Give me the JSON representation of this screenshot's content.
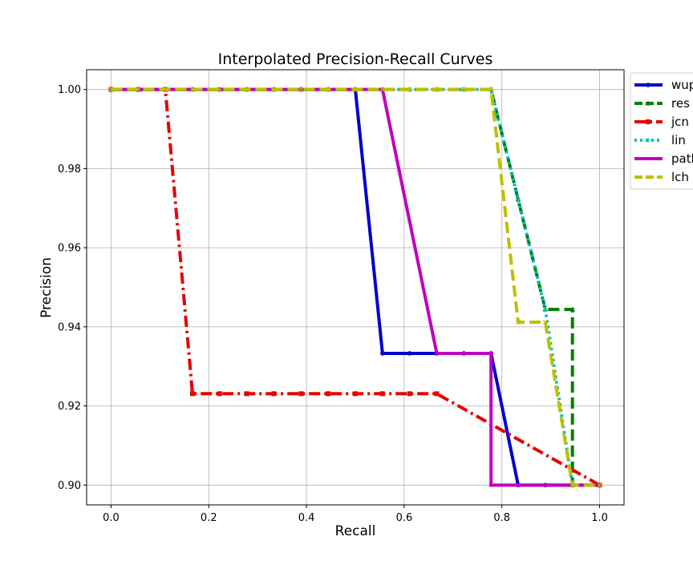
{
  "chart_data": {
    "type": "line",
    "title": "Interpolated Precision-Recall Curves",
    "xlabel": "Recall",
    "ylabel": "Precision",
    "xlim": [
      -0.05,
      1.05
    ],
    "ylim": [
      0.895,
      1.005
    ],
    "xticks": [
      0.0,
      0.2,
      0.4,
      0.6,
      0.8,
      1.0
    ],
    "xtick_labels": [
      "0.0",
      "0.2",
      "0.4",
      "0.6",
      "0.8",
      "1.0"
    ],
    "yticks": [
      0.9,
      0.92,
      0.94,
      0.96,
      0.98,
      1.0
    ],
    "ytick_labels": [
      "0.90",
      "0.92",
      "0.94",
      "0.96",
      "0.98",
      "1.00"
    ],
    "grid": true,
    "legend_position": "outside-right-top",
    "series": [
      {
        "name": "wup",
        "color": "#0000cc",
        "dash": "solid",
        "marker": "circle",
        "x": [
          0.0,
          0.0556,
          0.1111,
          0.1667,
          0.2222,
          0.2778,
          0.3333,
          0.3889,
          0.4444,
          0.5,
          0.5556,
          0.6111,
          0.6667,
          0.7222,
          0.7778,
          0.8333,
          0.8889,
          0.9444,
          1.0
        ],
        "y": [
          1.0,
          1.0,
          1.0,
          1.0,
          1.0,
          1.0,
          1.0,
          1.0,
          1.0,
          1.0,
          0.9333,
          0.9333,
          0.9333,
          0.9333,
          0.9333,
          0.9,
          0.9,
          0.9,
          0.9
        ]
      },
      {
        "name": "res",
        "color": "#007f00",
        "dash": "dashed",
        "marker": "triangle",
        "x": [
          0.0,
          0.0556,
          0.1111,
          0.1667,
          0.2222,
          0.2778,
          0.3333,
          0.3889,
          0.4444,
          0.5,
          0.5556,
          0.6111,
          0.6667,
          0.7222,
          0.7778,
          0.8333,
          0.8889,
          0.9444,
          0.9444,
          1.0
        ],
        "y": [
          1.0,
          1.0,
          1.0,
          1.0,
          1.0,
          1.0,
          1.0,
          1.0,
          1.0,
          1.0,
          1.0,
          1.0,
          1.0,
          1.0,
          1.0,
          0.9722,
          0.9444,
          0.9444,
          0.9,
          0.9
        ]
      },
      {
        "name": "jcn",
        "color": "#e60000",
        "dash": "dashdot",
        "marker": "square",
        "x": [
          0.0,
          0.0556,
          0.1111,
          0.1667,
          0.2222,
          0.2778,
          0.3333,
          0.3889,
          0.4444,
          0.5,
          0.5556,
          0.6111,
          0.6667,
          1.0
        ],
        "y": [
          1.0,
          1.0,
          1.0,
          0.9231,
          0.9231,
          0.9231,
          0.9231,
          0.9231,
          0.9231,
          0.9231,
          0.9231,
          0.9231,
          0.9231,
          0.9
        ]
      },
      {
        "name": "lin",
        "color": "#00bfbf",
        "dash": "dotted",
        "marker": "plus",
        "x": [
          0.0,
          0.0556,
          0.1111,
          0.1667,
          0.2222,
          0.2778,
          0.3333,
          0.3889,
          0.4444,
          0.5,
          0.5556,
          0.6111,
          0.6667,
          0.7222,
          0.7778,
          0.8333,
          0.8889,
          0.9444,
          1.0
        ],
        "y": [
          1.0,
          1.0,
          1.0,
          1.0,
          1.0,
          1.0,
          1.0,
          1.0,
          1.0,
          1.0,
          1.0,
          1.0,
          1.0,
          1.0,
          1.0,
          0.9722,
          0.9444,
          0.9,
          0.9
        ]
      },
      {
        "name": "path",
        "color": "#bf00bf",
        "dash": "solid",
        "marker": "dot",
        "x": [
          0.0,
          0.0556,
          0.1111,
          0.1667,
          0.2222,
          0.2778,
          0.3333,
          0.3889,
          0.4444,
          0.5,
          0.5556,
          0.6111,
          0.6667,
          0.7222,
          0.7778,
          0.7778,
          0.8333,
          0.8889,
          0.9444,
          1.0
        ],
        "y": [
          1.0,
          1.0,
          1.0,
          1.0,
          1.0,
          1.0,
          1.0,
          1.0,
          1.0,
          1.0,
          1.0,
          0.9667,
          0.9333,
          0.9333,
          0.9333,
          0.9,
          0.9,
          0.9,
          0.9,
          0.9
        ]
      },
      {
        "name": "lch",
        "color": "#bfbf00",
        "dash": "dashed",
        "marker": "x",
        "x": [
          0.0,
          0.0556,
          0.1111,
          0.1667,
          0.2222,
          0.2778,
          0.3333,
          0.3889,
          0.4444,
          0.5,
          0.5556,
          0.6111,
          0.6667,
          0.7222,
          0.7778,
          0.8333,
          0.8889,
          0.9444,
          1.0
        ],
        "y": [
          1.0,
          1.0,
          1.0,
          1.0,
          1.0,
          1.0,
          1.0,
          1.0,
          1.0,
          1.0,
          1.0,
          1.0,
          1.0,
          1.0,
          1.0,
          0.9412,
          0.9412,
          0.9,
          0.9
        ]
      }
    ]
  }
}
